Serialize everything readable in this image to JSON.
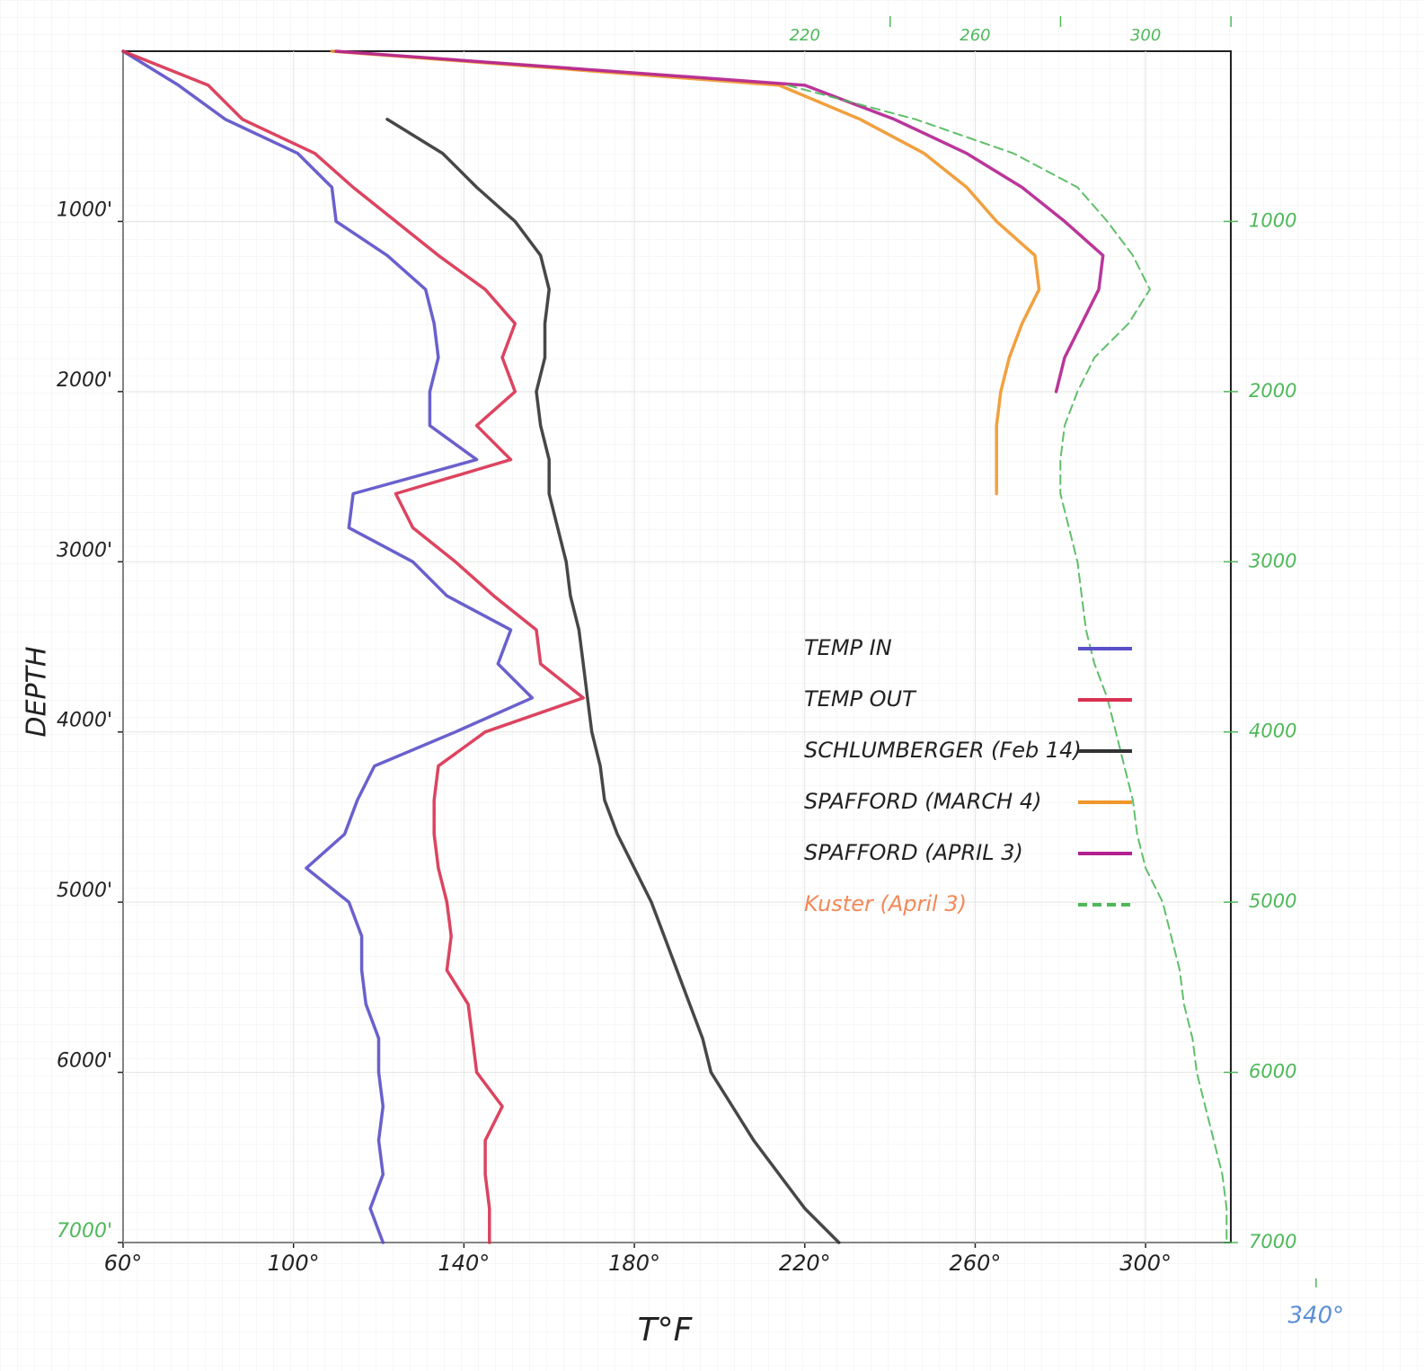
{
  "chart_data": {
    "type": "line",
    "orientation": "vertical-profile",
    "xlabel": "T°F",
    "ylabel": "DEPTH",
    "xlim": [
      60,
      320
    ],
    "xticks": [
      {
        "value": 60,
        "label": "60°"
      },
      {
        "value": 100,
        "label": "100°"
      },
      {
        "value": 140,
        "label": "140°"
      },
      {
        "value": 180,
        "label": "180°"
      },
      {
        "value": 220,
        "label": "220°"
      },
      {
        "value": 260,
        "label": "260°"
      },
      {
        "value": 300,
        "label": "300°"
      }
    ],
    "x2ticks": [
      220,
      260,
      300
    ],
    "outer_xticks": [
      {
        "value": 340,
        "label": "340°"
      }
    ],
    "ylim": [
      0,
      7000
    ],
    "yticks": [
      {
        "value": 1000,
        "label": "1000'"
      },
      {
        "value": 2000,
        "label": "2000'"
      },
      {
        "value": 3000,
        "label": "3000'"
      },
      {
        "value": 4000,
        "label": "4000'"
      },
      {
        "value": 5000,
        "label": "5000'"
      },
      {
        "value": 6000,
        "label": "6000'"
      },
      {
        "value": 7000,
        "label": "7000'"
      }
    ],
    "y2lim": [
      0,
      7000
    ],
    "y2ticks": [
      1000,
      2000,
      3000,
      4000,
      5000,
      6000,
      7000
    ],
    "grid": true,
    "legend": "right",
    "y": [
      0,
      200,
      400,
      600,
      800,
      1000,
      1200,
      1400,
      1600,
      1800,
      2000,
      2200,
      2400,
      2600,
      2800,
      3000,
      3200,
      3400,
      3600,
      3800,
      4000,
      4200,
      4400,
      4600,
      4800,
      5000,
      5200,
      5400,
      5600,
      5800,
      6000,
      6200,
      6400,
      6600,
      6800,
      7000
    ],
    "series": [
      {
        "name": "TEMP IN",
        "color": "#5a4fc8",
        "dashed": false,
        "values": [
          60,
          73,
          84,
          101,
          109,
          110,
          122,
          131,
          133,
          134,
          132,
          132,
          143,
          114,
          113,
          128,
          136,
          151,
          148,
          156,
          138,
          119,
          115,
          112,
          103,
          113,
          116,
          116,
          117,
          120,
          120,
          121,
          120,
          121,
          118,
          121
        ]
      },
      {
        "name": "TEMP OUT",
        "color": "#d8304f",
        "dashed": false,
        "values": [
          60,
          80,
          88,
          105,
          114,
          124,
          134,
          145,
          152,
          149,
          152,
          143,
          151,
          124,
          128,
          138,
          147,
          157,
          158,
          168,
          145,
          134,
          133,
          133,
          134,
          136,
          137,
          136,
          141,
          142,
          143,
          149,
          145,
          145,
          146,
          146
        ]
      },
      {
        "name": "SCHLUMBERGER (Feb 14)",
        "color": "#333333",
        "dashed": false,
        "values": [
          null,
          null,
          122,
          135,
          143,
          152,
          158,
          160,
          159,
          159,
          157,
          158,
          160,
          160,
          162,
          164,
          165,
          167,
          168,
          169,
          170,
          172,
          173,
          176,
          180,
          184,
          187,
          190,
          193,
          196,
          198,
          203,
          208,
          214,
          220,
          228
        ]
      },
      {
        "name": "SPAFFORD (MARCH 4)",
        "color": "#f0962a",
        "dashed": false,
        "values": [
          109,
          214,
          233,
          248,
          258,
          265,
          274,
          275,
          271,
          268,
          266,
          265,
          265,
          265,
          null,
          null,
          null,
          null,
          null,
          null,
          null,
          null,
          null,
          null,
          null,
          null,
          null,
          null,
          null,
          null,
          null,
          null,
          null,
          null,
          null,
          null
        ]
      },
      {
        "name": "SPAFFORD (APRIL 3)",
        "color": "#b3208f",
        "dashed": false,
        "values": [
          110,
          220,
          241,
          258,
          271,
          281,
          290,
          289,
          285,
          281,
          279,
          null,
          null,
          null,
          null,
          null,
          null,
          null,
          null,
          null,
          null,
          null,
          null,
          null,
          null,
          null,
          null,
          null,
          null,
          null,
          null,
          null,
          null,
          null,
          null,
          null
        ]
      },
      {
        "name": "Kuster (April 3)",
        "color": "#4fb85a",
        "dashed": true,
        "values": [
          null,
          216,
          246,
          269,
          284,
          291,
          297,
          301,
          296,
          288,
          284,
          281,
          280,
          280,
          282,
          284,
          285,
          286,
          288,
          291,
          293,
          295,
          297,
          298,
          300,
          304,
          306,
          308,
          309,
          311,
          312,
          314,
          316,
          318,
          319,
          319
        ]
      }
    ]
  }
}
